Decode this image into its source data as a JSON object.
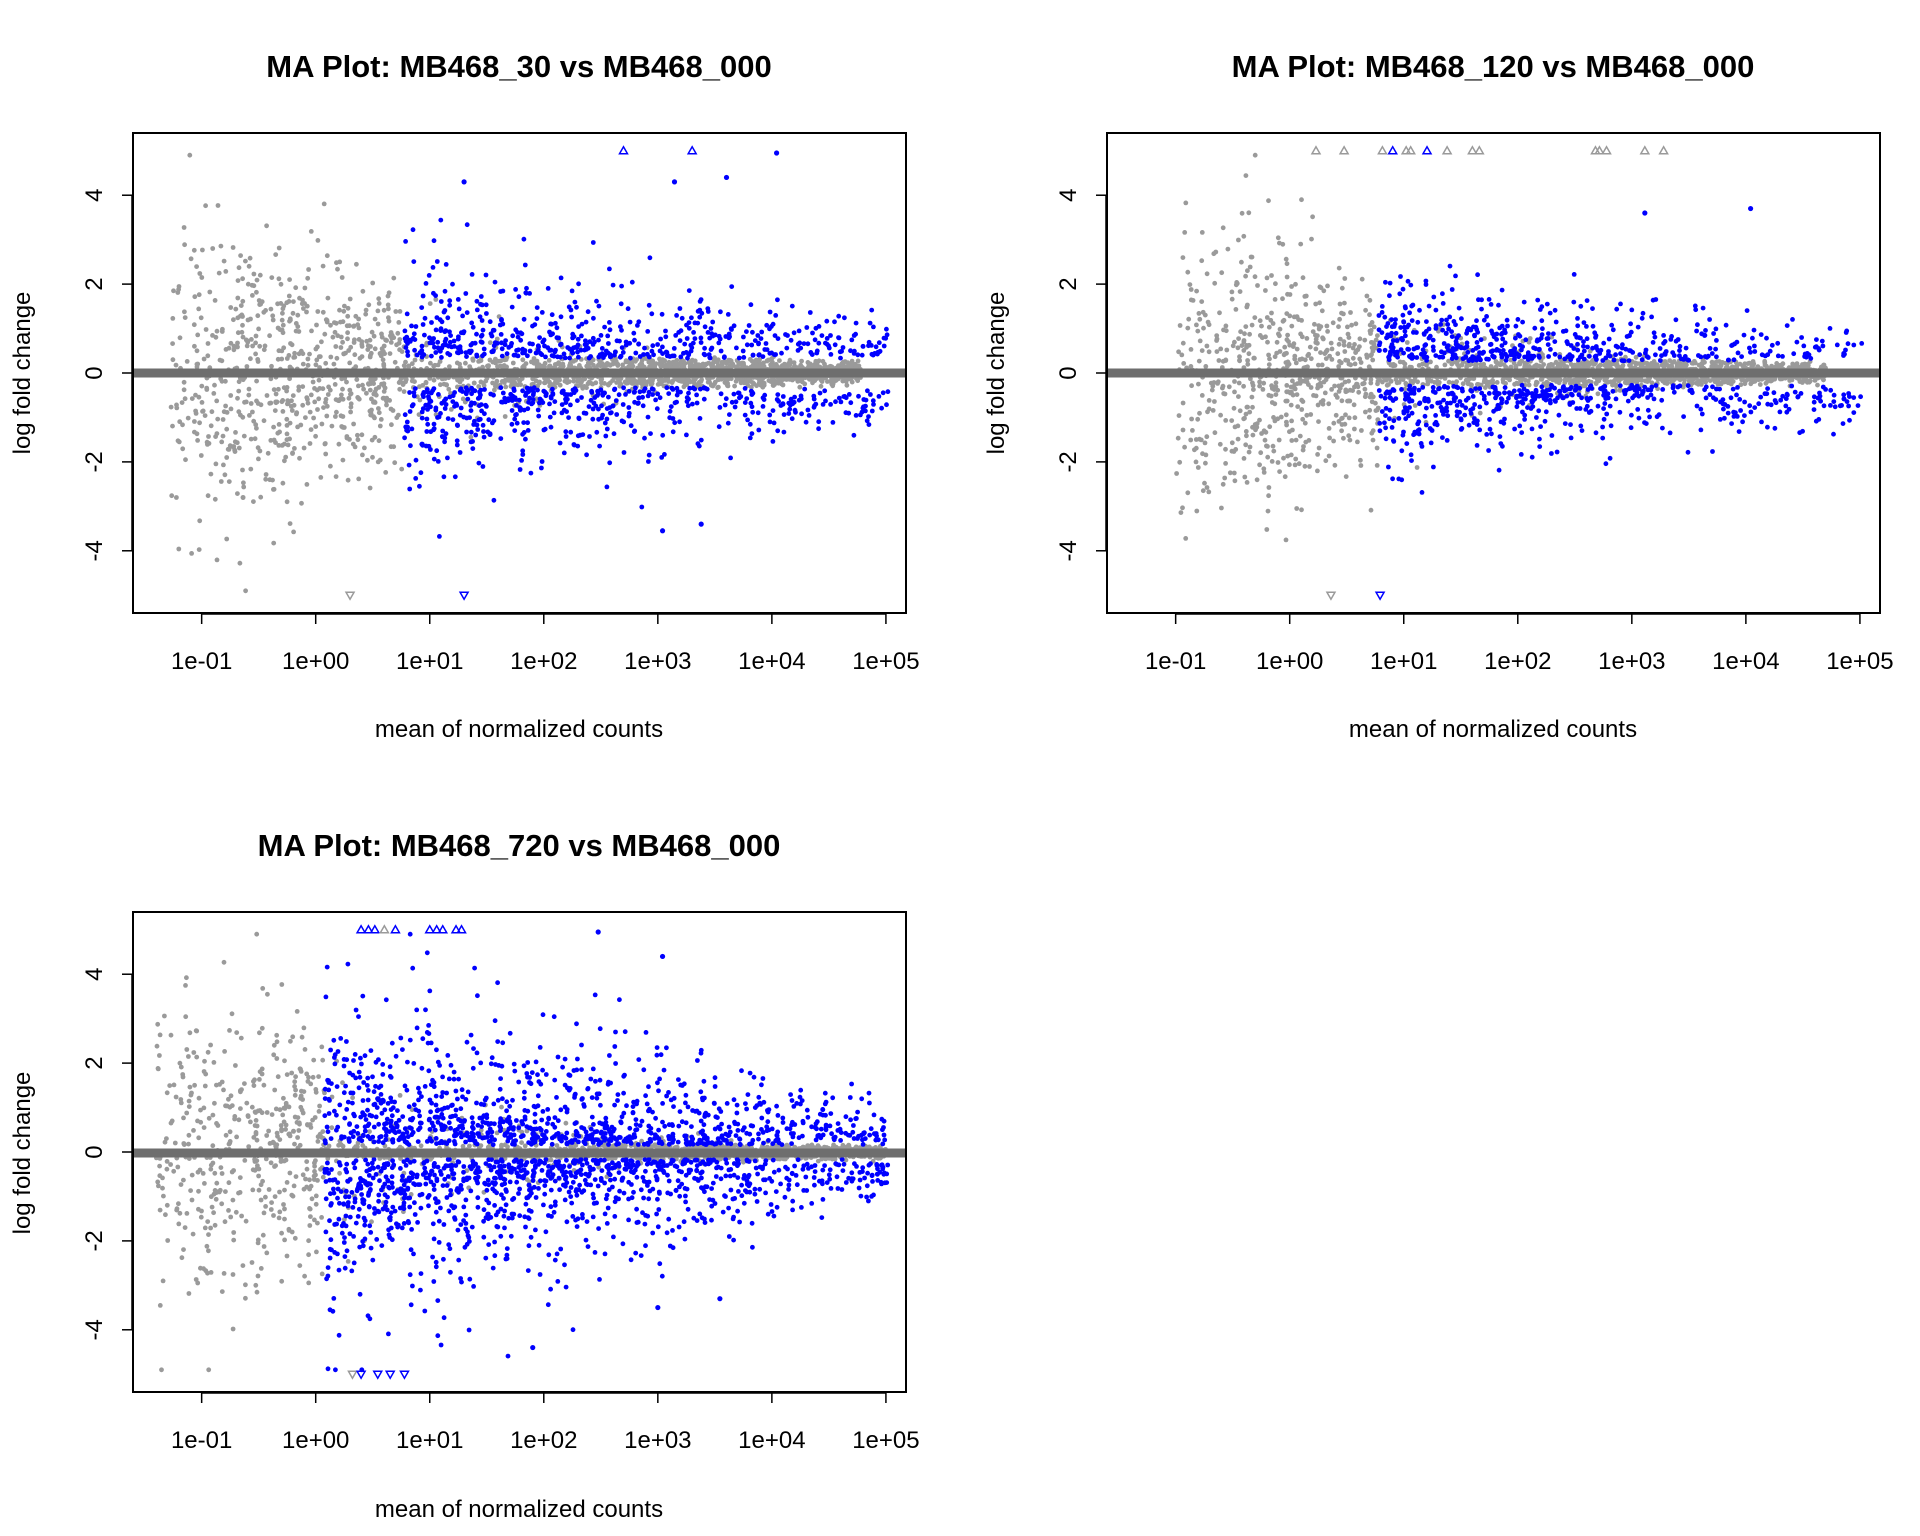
{
  "colors": {
    "not_significant": "#9a9a9a",
    "significant": "#0000ff",
    "baseline": "#6e6e6e",
    "frame": "#000000"
  },
  "chart_data": [
    {
      "type": "scatter",
      "title": "MA Plot: MB468_30 vs MB468_000",
      "xlabel": "mean of normalized counts",
      "ylabel": "log fold change",
      "x_scale": "log10",
      "xlim": [
        0.025,
        150000
      ],
      "ylim": [
        -5.4,
        5.4
      ],
      "x_ticks": [
        "1e-01",
        "1e+00",
        "1e+01",
        "1e+02",
        "1e+03",
        "1e+04",
        "1e+05"
      ],
      "y_ticks": [
        "-4",
        "-2",
        "0",
        "2",
        "4"
      ],
      "baseline": 0,
      "grid": false,
      "legend": "none",
      "series": [
        {
          "color_key": "not_significant",
          "note": "dense cloud, x 0.05–60000, spread narrowing from about ±4.7 at low counts to ±0.3 at high counts"
        },
        {
          "color_key": "significant",
          "note": "blue points x 6–100000, log fold change beyond ±0.3"
        }
      ],
      "sig_threshold_x": 6,
      "sig_spread": 0.7,
      "cloud": {
        "xmin": 0.05,
        "xmax": 60000,
        "wlow": 4.7,
        "mid": 0.3
      },
      "outliers": [
        {
          "x": 500,
          "y": 5,
          "shape": "up",
          "sig": true
        },
        {
          "x": 2000,
          "y": 5,
          "shape": "up",
          "sig": true
        },
        {
          "x": 2.0,
          "y": -5,
          "shape": "down",
          "sig": false
        },
        {
          "x": 20,
          "y": -5,
          "shape": "down",
          "sig": true
        },
        {
          "x": 11000,
          "y": 4.95,
          "shape": "dot",
          "sig": true
        },
        {
          "x": 20,
          "y": 4.3,
          "shape": "dot",
          "sig": true
        },
        {
          "x": 1400,
          "y": 4.3,
          "shape": "dot",
          "sig": true
        },
        {
          "x": 4000,
          "y": 4.4,
          "shape": "dot",
          "sig": true
        },
        {
          "x": 1100,
          "y": -3.55,
          "shape": "dot",
          "sig": true
        },
        {
          "x": 2400,
          "y": -3.4,
          "shape": "dot",
          "sig": true
        }
      ]
    },
    {
      "type": "scatter",
      "title": "MA Plot: MB468_120 vs MB468_000",
      "xlabel": "mean of normalized counts",
      "ylabel": "log fold change",
      "x_scale": "log10",
      "xlim": [
        0.025,
        150000
      ],
      "ylim": [
        -5.4,
        5.4
      ],
      "x_ticks": [
        "1e-01",
        "1e+00",
        "1e+01",
        "1e+02",
        "1e+03",
        "1e+04",
        "1e+05"
      ],
      "y_ticks": [
        "-4",
        "-2",
        "0",
        "2",
        "4"
      ],
      "baseline": 0,
      "grid": false,
      "legend": "none",
      "series": [
        {
          "color_key": "not_significant",
          "note": "dense cloud, x 0.1–50000, spread narrowing from about ±4.5 at low counts to ±0.2 at high counts"
        },
        {
          "color_key": "significant",
          "note": "blue points x 6–60000, log fold change beyond ±0.25"
        }
      ],
      "sig_threshold_x": 6,
      "sig_spread": 0.55,
      "cloud": {
        "xmin": 0.1,
        "xmax": 50000,
        "wlow": 4.5,
        "mid": 0.25
      },
      "outliers": [
        {
          "x": 1.7,
          "y": 5,
          "shape": "up",
          "sig": false
        },
        {
          "x": 3.0,
          "y": 5,
          "shape": "up",
          "sig": false
        },
        {
          "x": 6.5,
          "y": 5,
          "shape": "up",
          "sig": false
        },
        {
          "x": 8,
          "y": 5,
          "shape": "up",
          "sig": true
        },
        {
          "x": 10.5,
          "y": 5,
          "shape": "up",
          "sig": false
        },
        {
          "x": 11.5,
          "y": 5,
          "shape": "up",
          "sig": false
        },
        {
          "x": 16,
          "y": 5,
          "shape": "up",
          "sig": true
        },
        {
          "x": 24,
          "y": 5,
          "shape": "up",
          "sig": false
        },
        {
          "x": 40,
          "y": 5,
          "shape": "up",
          "sig": false
        },
        {
          "x": 46,
          "y": 5,
          "shape": "up",
          "sig": false
        },
        {
          "x": 480,
          "y": 5,
          "shape": "up",
          "sig": false
        },
        {
          "x": 520,
          "y": 5,
          "shape": "up",
          "sig": false
        },
        {
          "x": 600,
          "y": 5,
          "shape": "up",
          "sig": false
        },
        {
          "x": 1300,
          "y": 5,
          "shape": "up",
          "sig": false
        },
        {
          "x": 1900,
          "y": 5,
          "shape": "up",
          "sig": false
        },
        {
          "x": 2.3,
          "y": -5,
          "shape": "down",
          "sig": false
        },
        {
          "x": 6.2,
          "y": -5,
          "shape": "down",
          "sig": true
        },
        {
          "x": 11000,
          "y": 3.7,
          "shape": "dot",
          "sig": true
        },
        {
          "x": 1300,
          "y": 3.6,
          "shape": "dot",
          "sig": true
        }
      ]
    },
    {
      "type": "scatter",
      "title": "MA Plot: MB468_720 vs MB468_000",
      "xlabel": "mean of normalized counts",
      "ylabel": "log fold change",
      "x_scale": "log10",
      "xlim": [
        0.025,
        150000
      ],
      "ylim": [
        -5.4,
        5.4
      ],
      "x_ticks": [
        "1e-01",
        "1e+00",
        "1e+01",
        "1e+02",
        "1e+03",
        "1e+04",
        "1e+05"
      ],
      "y_ticks": [
        "-4",
        "-2",
        "0",
        "2",
        "4"
      ],
      "baseline": 0,
      "grid": false,
      "legend": "none",
      "series": [
        {
          "color_key": "not_significant",
          "note": "dense cloud, x 0.04–100000, spread narrowing from about ±4.8 at low counts to ±0.3 at high counts"
        },
        {
          "color_key": "significant",
          "note": "many blue points x 1–110000, log fold change beyond ±0.15"
        }
      ],
      "sig_threshold_x": 1.2,
      "sig_spread": 1.3,
      "cloud": {
        "xmin": 0.04,
        "xmax": 100000,
        "wlow": 4.8,
        "mid": 0.15
      },
      "outliers": [
        {
          "x": 2.5,
          "y": 5,
          "shape": "up",
          "sig": true
        },
        {
          "x": 2.9,
          "y": 5,
          "shape": "up",
          "sig": true
        },
        {
          "x": 3.3,
          "y": 5,
          "shape": "up",
          "sig": true
        },
        {
          "x": 4.0,
          "y": 5,
          "shape": "up",
          "sig": false
        },
        {
          "x": 5.0,
          "y": 5,
          "shape": "up",
          "sig": true
        },
        {
          "x": 10,
          "y": 5,
          "shape": "up",
          "sig": true
        },
        {
          "x": 11.5,
          "y": 5,
          "shape": "up",
          "sig": true
        },
        {
          "x": 13,
          "y": 5,
          "shape": "up",
          "sig": true
        },
        {
          "x": 17,
          "y": 5,
          "shape": "up",
          "sig": true
        },
        {
          "x": 19,
          "y": 5,
          "shape": "up",
          "sig": true
        },
        {
          "x": 2.1,
          "y": -5,
          "shape": "down",
          "sig": false
        },
        {
          "x": 2.5,
          "y": -5,
          "shape": "down",
          "sig": true
        },
        {
          "x": 3.5,
          "y": -5,
          "shape": "down",
          "sig": true
        },
        {
          "x": 4.5,
          "y": -5,
          "shape": "down",
          "sig": true
        },
        {
          "x": 6,
          "y": -5,
          "shape": "down",
          "sig": true
        },
        {
          "x": 300,
          "y": 4.95,
          "shape": "dot",
          "sig": true
        },
        {
          "x": 1100,
          "y": 4.4,
          "shape": "dot",
          "sig": true
        },
        {
          "x": 3500,
          "y": -3.3,
          "shape": "dot",
          "sig": true
        },
        {
          "x": 1000,
          "y": -3.5,
          "shape": "dot",
          "sig": true
        },
        {
          "x": 80,
          "y": -4.4,
          "shape": "dot",
          "sig": true
        }
      ]
    }
  ]
}
